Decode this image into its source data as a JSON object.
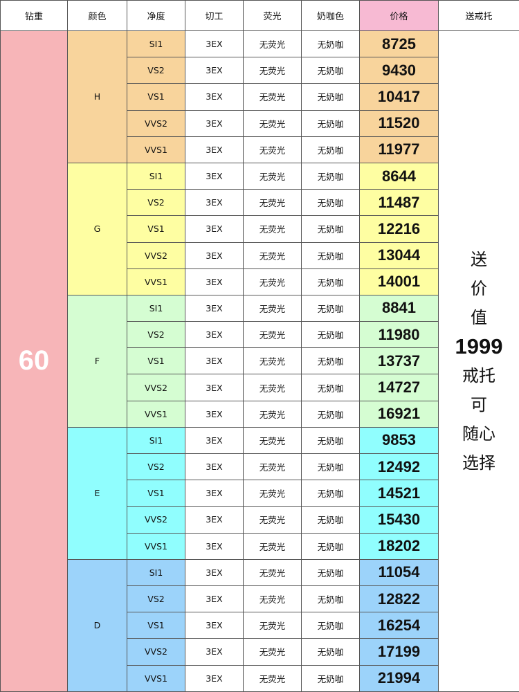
{
  "header": [
    "钻重",
    "颜色",
    "净度",
    "切工",
    "荧光",
    "奶咖色",
    "价格",
    "送戒托"
  ],
  "colors": {
    "weight_bg": "#f7b5b8",
    "price_header_bg": "#f7bad3",
    "H": "#f8d49c",
    "G": "#fefea2",
    "F": "#d5fdd2",
    "E": "#90fefe",
    "D": "#9cd3fa"
  },
  "weight": "60",
  "gift_lines": [
    "送",
    "价",
    "值",
    "1999",
    "戒托",
    "可",
    "随心",
    "选择"
  ],
  "groups": [
    {
      "color": "H",
      "rows": [
        {
          "clarity": "SI1",
          "cut": "3EX",
          "fluorescence": "无荧光",
          "brown": "无奶咖",
          "price": "8725"
        },
        {
          "clarity": "VS2",
          "cut": "3EX",
          "fluorescence": "无荧光",
          "brown": "无奶咖",
          "price": "9430"
        },
        {
          "clarity": "VS1",
          "cut": "3EX",
          "fluorescence": "无荧光",
          "brown": "无奶咖",
          "price": "10417"
        },
        {
          "clarity": "VVS2",
          "cut": "3EX",
          "fluorescence": "无荧光",
          "brown": "无奶咖",
          "price": "11520"
        },
        {
          "clarity": "VVS1",
          "cut": "3EX",
          "fluorescence": "无荧光",
          "brown": "无奶咖",
          "price": "11977"
        }
      ]
    },
    {
      "color": "G",
      "rows": [
        {
          "clarity": "SI1",
          "cut": "3EX",
          "fluorescence": "无荧光",
          "brown": "无奶咖",
          "price": "8644"
        },
        {
          "clarity": "VS2",
          "cut": "3EX",
          "fluorescence": "无荧光",
          "brown": "无奶咖",
          "price": "11487"
        },
        {
          "clarity": "VS1",
          "cut": "3EX",
          "fluorescence": "无荧光",
          "brown": "无奶咖",
          "price": "12216"
        },
        {
          "clarity": "VVS2",
          "cut": "3EX",
          "fluorescence": "无荧光",
          "brown": "无奶咖",
          "price": "13044"
        },
        {
          "clarity": "VVS1",
          "cut": "3EX",
          "fluorescence": "无荧光",
          "brown": "无奶咖",
          "price": "14001"
        }
      ]
    },
    {
      "color": "F",
      "rows": [
        {
          "clarity": "SI1",
          "cut": "3EX",
          "fluorescence": "无荧光",
          "brown": "无奶咖",
          "price": "8841"
        },
        {
          "clarity": "VS2",
          "cut": "3EX",
          "fluorescence": "无荧光",
          "brown": "无奶咖",
          "price": "11980"
        },
        {
          "clarity": "VS1",
          "cut": "3EX",
          "fluorescence": "无荧光",
          "brown": "无奶咖",
          "price": "13737"
        },
        {
          "clarity": "VVS2",
          "cut": "3EX",
          "fluorescence": "无荧光",
          "brown": "无奶咖",
          "price": "14727"
        },
        {
          "clarity": "VVS1",
          "cut": "3EX",
          "fluorescence": "无荧光",
          "brown": "无奶咖",
          "price": "16921"
        }
      ]
    },
    {
      "color": "E",
      "rows": [
        {
          "clarity": "SI1",
          "cut": "3EX",
          "fluorescence": "无荧光",
          "brown": "无奶咖",
          "price": "9853"
        },
        {
          "clarity": "VS2",
          "cut": "3EX",
          "fluorescence": "无荧光",
          "brown": "无奶咖",
          "price": "12492"
        },
        {
          "clarity": "VS1",
          "cut": "3EX",
          "fluorescence": "无荧光",
          "brown": "无奶咖",
          "price": "14521"
        },
        {
          "clarity": "VVS2",
          "cut": "3EX",
          "fluorescence": "无荧光",
          "brown": "无奶咖",
          "price": "15430"
        },
        {
          "clarity": "VVS1",
          "cut": "3EX",
          "fluorescence": "无荧光",
          "brown": "无奶咖",
          "price": "18202"
        }
      ]
    },
    {
      "color": "D",
      "rows": [
        {
          "clarity": "SI1",
          "cut": "3EX",
          "fluorescence": "无荧光",
          "brown": "无奶咖",
          "price": "11054"
        },
        {
          "clarity": "VS2",
          "cut": "3EX",
          "fluorescence": "无荧光",
          "brown": "无奶咖",
          "price": "12822"
        },
        {
          "clarity": "VS1",
          "cut": "3EX",
          "fluorescence": "无荧光",
          "brown": "无奶咖",
          "price": "16254"
        },
        {
          "clarity": "VVS2",
          "cut": "3EX",
          "fluorescence": "无荧光",
          "brown": "无奶咖",
          "price": "17199"
        },
        {
          "clarity": "VVS1",
          "cut": "3EX",
          "fluorescence": "无荧光",
          "brown": "无奶咖",
          "price": "21994"
        }
      ]
    }
  ]
}
